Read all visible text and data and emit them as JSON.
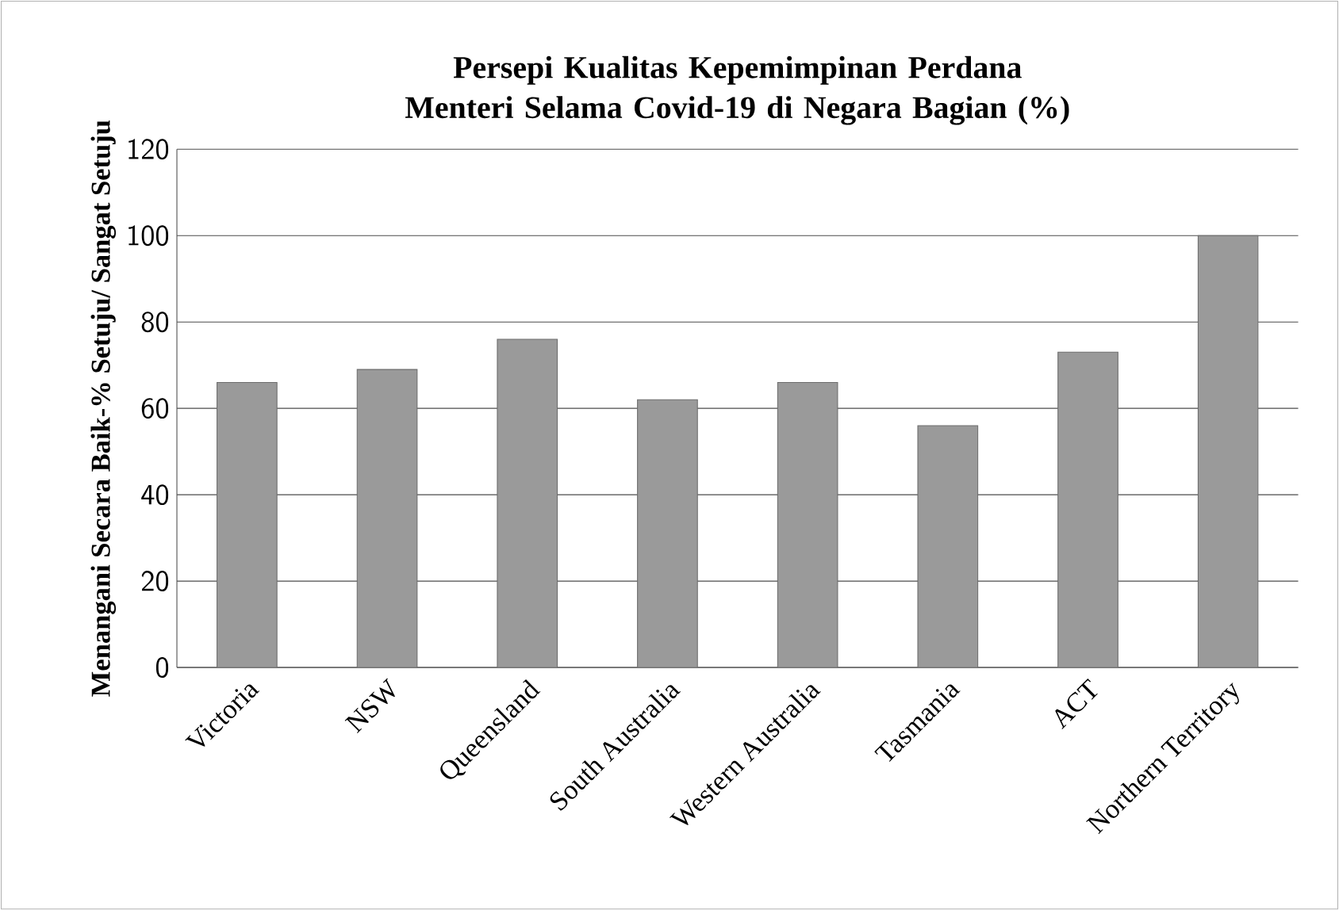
{
  "chart_data": {
    "type": "bar",
    "title": "Persepi Kualitas  Kepemimpinan Perdana Menteri Selama Covid-19 di Negara Bagian  (%)",
    "ylabel": "Menangani Secara Baik-% Setuju/ Sangat Setuju",
    "categories": [
      "Victoria",
      "NSW",
      "Queensland",
      "South Australia",
      "Western Australia",
      "Tasmania",
      "ACT",
      "Northern Territory"
    ],
    "values": [
      66,
      69,
      76,
      62,
      66,
      56,
      73,
      100
    ],
    "color": "#9a9a9a",
    "ylim": [
      0,
      120
    ],
    "yticks": [
      0,
      20,
      40,
      60,
      80,
      100,
      120
    ],
    "grid": "y"
  }
}
